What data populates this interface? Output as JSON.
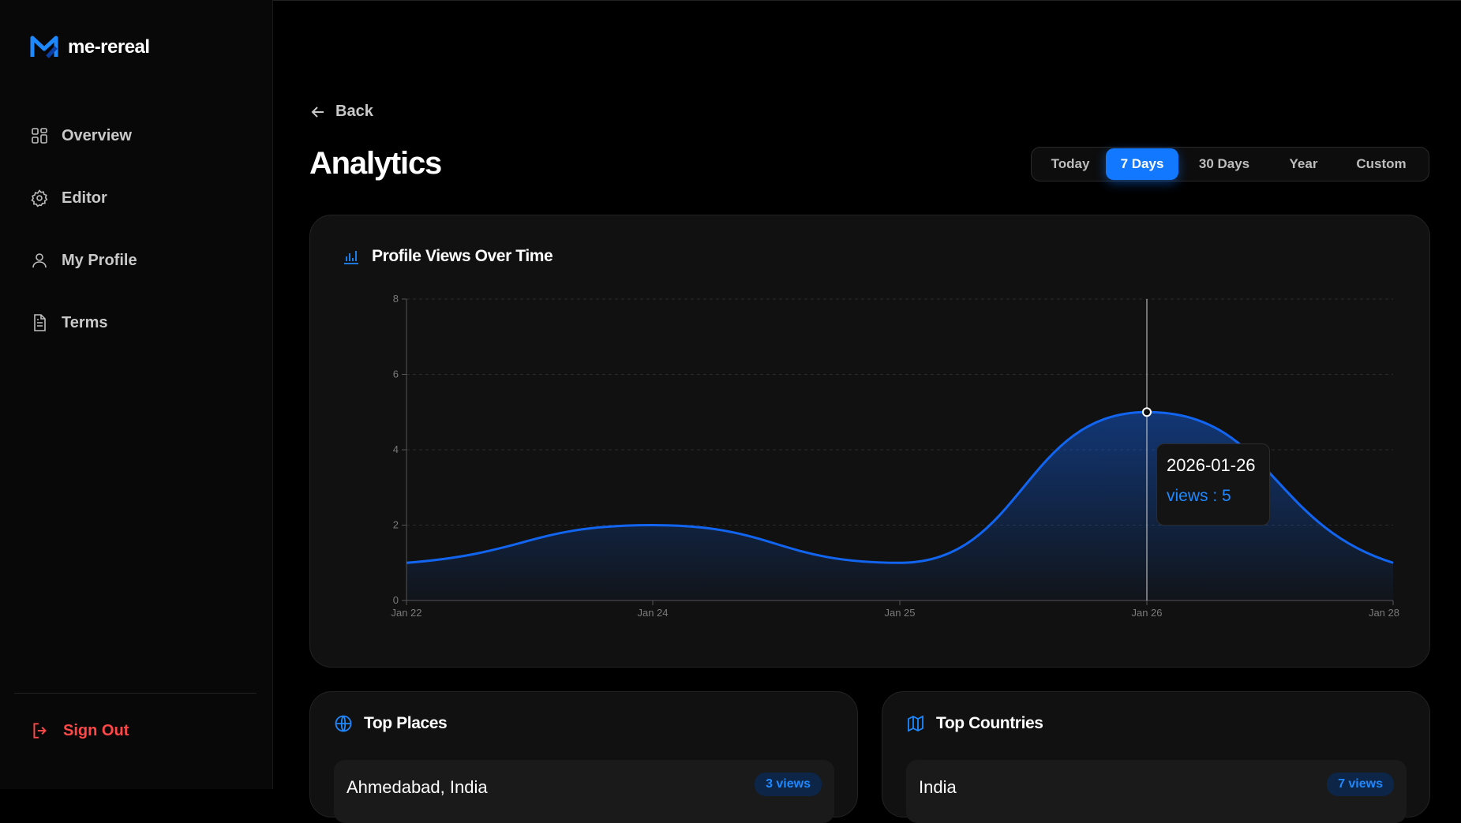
{
  "app": {
    "name": "me-rereal"
  },
  "sidebar": {
    "items": [
      {
        "label": "Overview",
        "icon": "grid-icon"
      },
      {
        "label": "Editor",
        "icon": "gear-icon"
      },
      {
        "label": "My Profile",
        "icon": "user-icon"
      },
      {
        "label": "Terms",
        "icon": "document-icon"
      }
    ],
    "signout_label": "Sign Out"
  },
  "header": {
    "back_label": "Back",
    "title": "Analytics",
    "ranges": [
      "Today",
      "7 Days",
      "30 Days",
      "Year",
      "Custom"
    ],
    "active_range": "7 Days"
  },
  "views_card": {
    "title": "Profile Views Over Time",
    "tooltip": {
      "date": "2026-01-26",
      "text": "views : 5"
    }
  },
  "chart_data": {
    "type": "area",
    "title": "Profile Views Over Time",
    "x": [
      "Jan 22",
      "Jan 24",
      "Jan 25",
      "Jan 26",
      "Jan 28"
    ],
    "values": [
      1,
      2,
      1,
      5,
      1
    ],
    "xlabel": "",
    "ylabel": "",
    "ylim": [
      0,
      8
    ],
    "yticks": [
      0,
      2,
      4,
      6,
      8
    ],
    "grid": true,
    "highlight_index": 3,
    "color": "#1265f0"
  },
  "top_places": {
    "title": "Top Places",
    "items": [
      {
        "label": "Ahmedabad, India",
        "badge": "3 views"
      }
    ]
  },
  "top_countries": {
    "title": "Top Countries",
    "items": [
      {
        "label": "India",
        "badge": "7 views"
      }
    ]
  },
  "colors": {
    "accent": "#1278ff",
    "danger": "#ff4747",
    "bg": "#000000",
    "card": "#111111"
  }
}
